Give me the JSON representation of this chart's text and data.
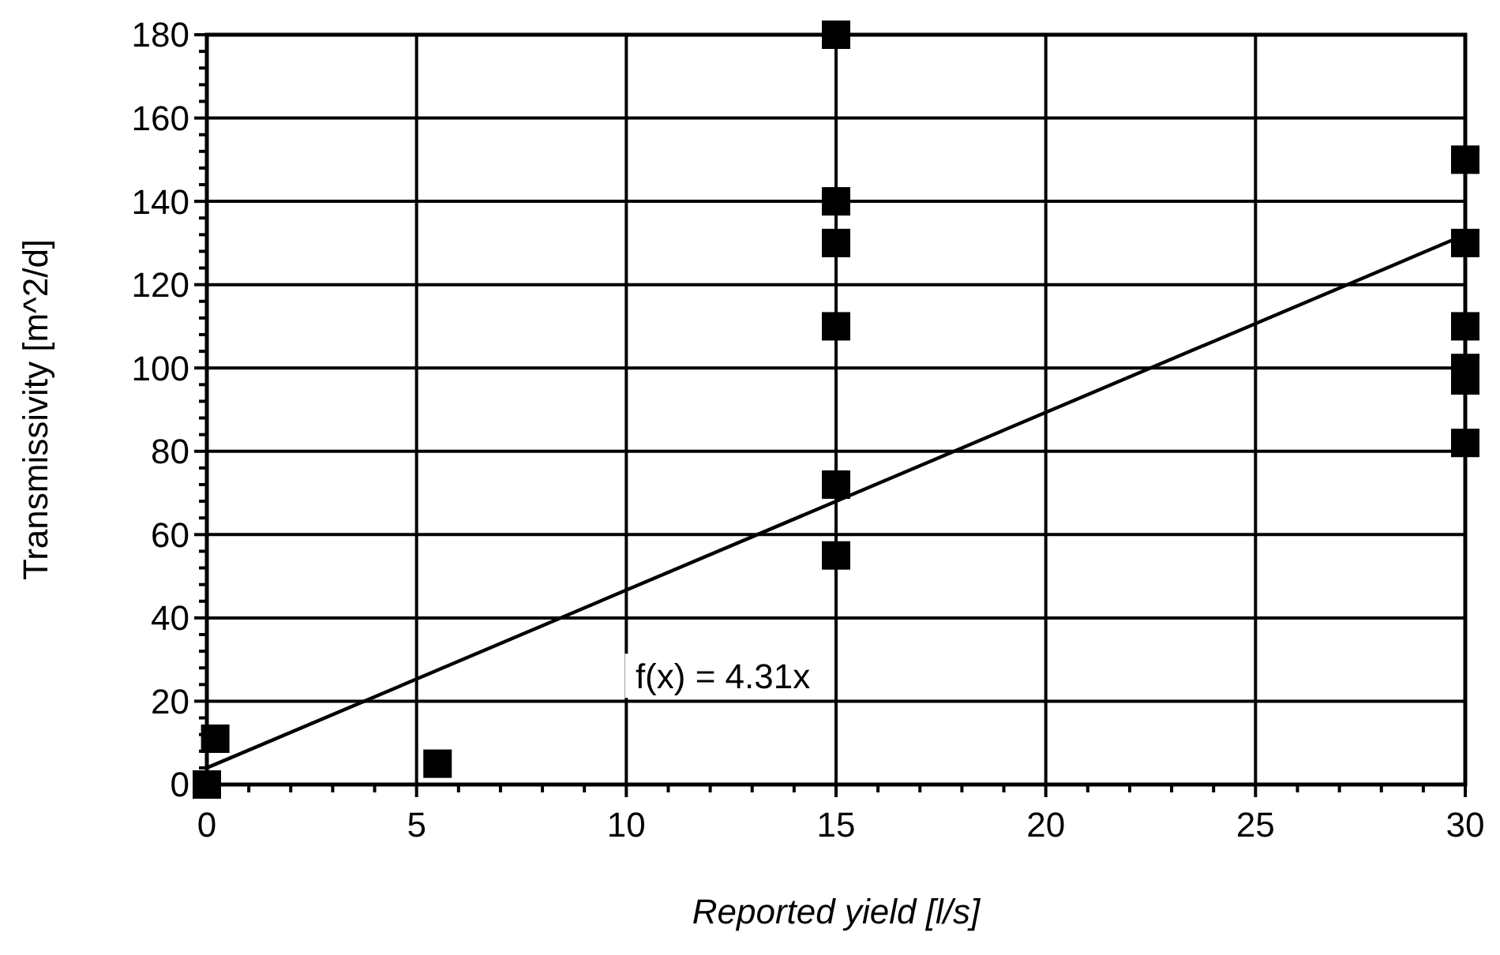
{
  "chart_data": {
    "type": "scatter",
    "xlabel": "Reported yield [l/s]",
    "ylabel": "Transmissivity [m^2/d]",
    "xlim": [
      0,
      30
    ],
    "ylim": [
      0,
      180
    ],
    "xticks": [
      0,
      {
        "value": 1,
        "label": null
      },
      {
        "value": 2,
        "label": null
      },
      {
        "value": 3,
        "label": null
      },
      {
        "value": 4,
        "label": null
      },
      5,
      {
        "value": 6,
        "label": null
      },
      {
        "value": 7,
        "label": null
      },
      {
        "value": 8,
        "label": null
      },
      {
        "value": 9,
        "label": null
      },
      10,
      {
        "value": 11,
        "label": null
      },
      {
        "value": 12,
        "label": null
      },
      {
        "value": 13,
        "label": null
      },
      {
        "value": 14,
        "label": null
      },
      15,
      {
        "value": 16,
        "label": null
      },
      {
        "value": 17,
        "label": null
      },
      {
        "value": 18,
        "label": null
      },
      {
        "value": 19,
        "label": null
      },
      20,
      {
        "value": 21,
        "label": null
      },
      {
        "value": 22,
        "label": null
      },
      {
        "value": 23,
        "label": null
      },
      {
        "value": 24,
        "label": null
      },
      25,
      {
        "value": 26,
        "label": null
      },
      {
        "value": 27,
        "label": null
      },
      {
        "value": 28,
        "label": null
      },
      {
        "value": 29,
        "label": null
      },
      30
    ],
    "yticks": [
      0,
      {
        "value": 4,
        "label": null
      },
      {
        "value": 8,
        "label": null
      },
      {
        "value": 12,
        "label": null
      },
      {
        "value": 16,
        "label": null
      },
      20,
      {
        "value": 24,
        "label": null
      },
      {
        "value": 28,
        "label": null
      },
      {
        "value": 32,
        "label": null
      },
      {
        "value": 36,
        "label": null
      },
      40,
      {
        "value": 44,
        "label": null
      },
      {
        "value": 48,
        "label": null
      },
      {
        "value": 52,
        "label": null
      },
      {
        "value": 56,
        "label": null
      },
      60,
      {
        "value": 64,
        "label": null
      },
      {
        "value": 68,
        "label": null
      },
      {
        "value": 72,
        "label": null
      },
      {
        "value": 76,
        "label": null
      },
      80,
      {
        "value": 84,
        "label": null
      },
      {
        "value": 88,
        "label": null
      },
      {
        "value": 92,
        "label": null
      },
      {
        "value": 96,
        "label": null
      },
      100,
      {
        "value": 104,
        "label": null
      },
      {
        "value": 108,
        "label": null
      },
      {
        "value": 112,
        "label": null
      },
      {
        "value": 116,
        "label": null
      },
      120,
      {
        "value": 124,
        "label": null
      },
      {
        "value": 128,
        "label": null
      },
      {
        "value": 132,
        "label": null
      },
      {
        "value": 136,
        "label": null
      },
      140,
      {
        "value": 144,
        "label": null
      },
      {
        "value": 148,
        "label": null
      },
      {
        "value": 152,
        "label": null
      },
      {
        "value": 156,
        "label": null
      },
      160,
      {
        "value": 164,
        "label": null
      },
      {
        "value": 168,
        "label": null
      },
      {
        "value": 172,
        "label": null
      },
      {
        "value": 176,
        "label": null
      },
      180
    ],
    "grid": true,
    "marker": "square",
    "series": [
      {
        "color": "#000000",
        "x": [
          0,
          0.2,
          5.5,
          15,
          15,
          15,
          15,
          15,
          15,
          30,
          30,
          30,
          30,
          30,
          30
        ],
        "values": [
          0,
          11,
          5,
          180,
          140,
          130,
          110,
          72,
          55,
          150,
          130,
          110,
          100,
          97,
          82
        ]
      },
      {
        "type": "line",
        "color": "#000000",
        "marker": "none",
        "line_style": "solid",
        "x": [
          0,
          30
        ],
        "values": [
          4,
          132
        ]
      }
    ],
    "annotations": [
      "f(x) = 4.31x"
    ]
  }
}
